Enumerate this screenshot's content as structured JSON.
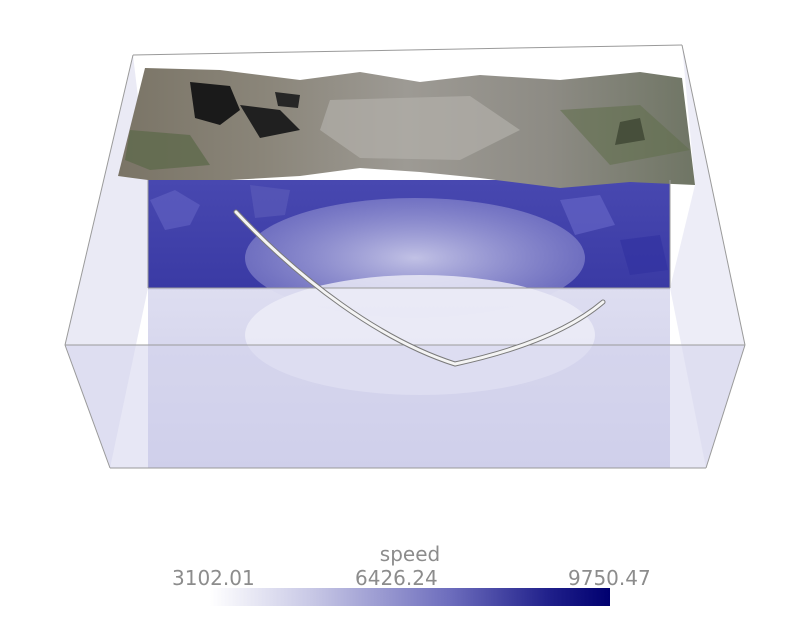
{
  "scene": {
    "colors": {
      "background": "#ffffff",
      "outline": "#9a9a9a",
      "volume_low": "#e4e4f4",
      "volume_high": "#2b2b9a",
      "trajectory": "#f2f2f2"
    }
  },
  "colorbar": {
    "title": "speed",
    "min_label": "3102.01",
    "mid_label": "6426.24",
    "max_label": "9750.47",
    "colormap": [
      "#ffffff",
      "#000070"
    ]
  }
}
